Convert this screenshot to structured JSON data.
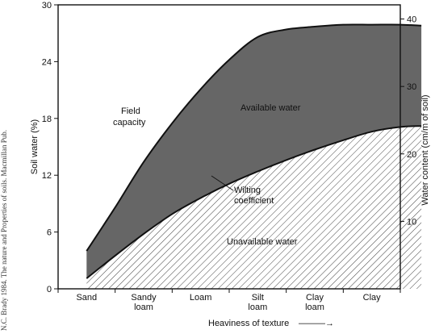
{
  "chart_data": {
    "type": "area",
    "categories": [
      "Sand",
      "Sandy loam",
      "Loam",
      "Silt loam",
      "Clay loam",
      "Clay"
    ],
    "categories_lines": [
      [
        "Sand"
      ],
      [
        "Sandy",
        "loam"
      ],
      [
        "Loam"
      ],
      [
        "Silt",
        "loam"
      ],
      [
        "Clay",
        "loam"
      ],
      [
        "Clay"
      ]
    ],
    "x": [
      0,
      0.5,
      1,
      1.5,
      2,
      2.5,
      3,
      3.5,
      4,
      4.5,
      5,
      5.5,
      5.87
    ],
    "series": [
      {
        "name": "Field capacity",
        "values": [
          4.0,
          8.6,
          13.4,
          17.5,
          21.1,
          24.2,
          26.6,
          27.4,
          27.7,
          27.9,
          27.9,
          27.9,
          27.8
        ]
      },
      {
        "name": "Wilting coefficient",
        "values": [
          1.1,
          3.5,
          5.8,
          7.9,
          9.6,
          11.1,
          12.4,
          13.6,
          14.7,
          15.7,
          16.6,
          17.1,
          17.2
        ]
      }
    ],
    "region_labels": [
      "Available water",
      "Unavailable water"
    ],
    "xlabel": "Heaviness of texture",
    "xlabel_arrow": "———→",
    "ylabel": "Soil water (%)",
    "y2label": "Water content (cm/m of soil)",
    "yticks": [
      0,
      6,
      12,
      18,
      24,
      30
    ],
    "yticklabels": [
      "0",
      "6",
      "12",
      "18",
      "24",
      "30"
    ],
    "ylim": [
      0,
      30
    ],
    "y2ticks": [
      10,
      20,
      30,
      40
    ],
    "y2ticklabels": [
      "10",
      "20",
      "30",
      "40"
    ],
    "y2lim": [
      0,
      42.1
    ],
    "grid": false,
    "legend": "none",
    "credit": "N.C. Brady 1984. The nature and Properties of soils. Macmillan Pub."
  },
  "annotations": {
    "field_capacity": [
      "Field",
      "capacity"
    ],
    "wilting_coefficient": [
      "Wilting",
      "coefficient"
    ]
  },
  "colors": {
    "available_fill": "#666666",
    "unavailable_hatch": "#444444",
    "line": "#111111"
  }
}
